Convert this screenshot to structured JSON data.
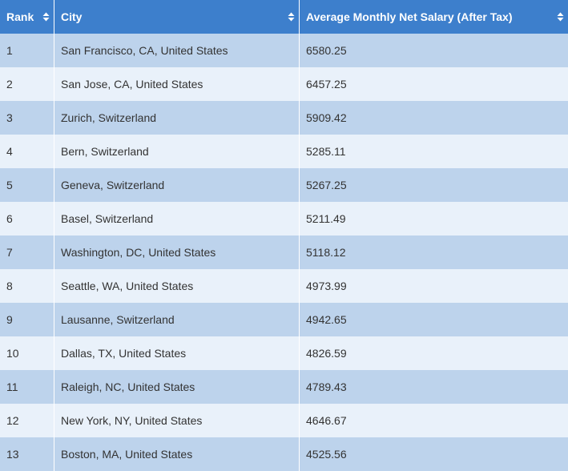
{
  "table": {
    "headers": [
      "Rank",
      "City",
      "Average Monthly Net Salary (After Tax)"
    ],
    "rows": [
      [
        "1",
        "San Francisco, CA, United States",
        "6580.25"
      ],
      [
        "2",
        "San Jose, CA, United States",
        "6457.25"
      ],
      [
        "3",
        "Zurich, Switzerland",
        "5909.42"
      ],
      [
        "4",
        "Bern, Switzerland",
        "5285.11"
      ],
      [
        "5",
        "Geneva, Switzerland",
        "5267.25"
      ],
      [
        "6",
        "Basel, Switzerland",
        "5211.49"
      ],
      [
        "7",
        "Washington, DC, United States",
        "5118.12"
      ],
      [
        "8",
        "Seattle, WA, United States",
        "4973.99"
      ],
      [
        "9",
        "Lausanne, Switzerland",
        "4942.65"
      ],
      [
        "10",
        "Dallas, TX, United States",
        "4826.59"
      ],
      [
        "11",
        "Raleigh, NC, United States",
        "4789.43"
      ],
      [
        "12",
        "New York, NY, United States",
        "4646.67"
      ],
      [
        "13",
        "Boston, MA, United States",
        "4525.56"
      ]
    ]
  }
}
